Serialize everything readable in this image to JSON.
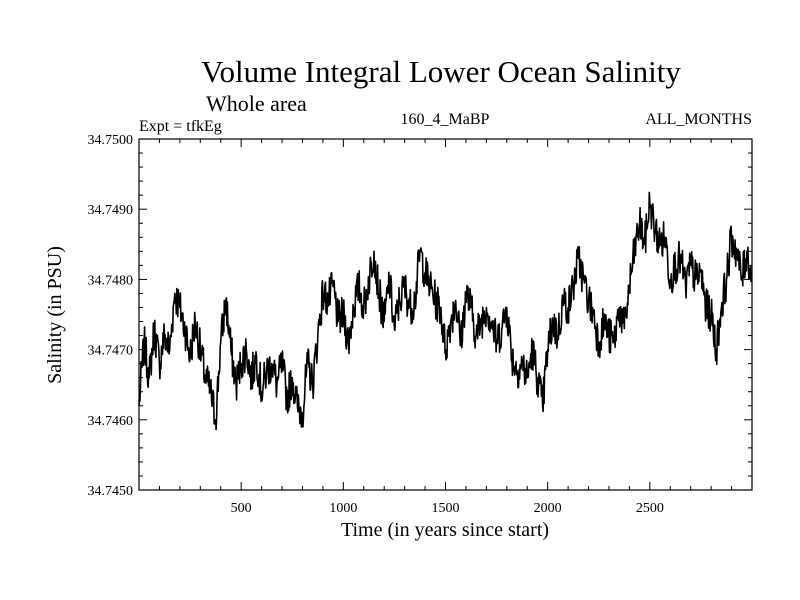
{
  "header": {
    "title": "Volume Integral Lower Ocean Salinity",
    "subtitle": "Whole area",
    "expt": "Expt = tfkEg",
    "run": "160_4_MaBP",
    "months": "ALL_MONTHS"
  },
  "chart_data": {
    "type": "line",
    "xlabel": "Time (in years since start)",
    "ylabel": "Salinity (in PSU)",
    "xlim": [
      0,
      3000
    ],
    "ylim": [
      34.745,
      34.75
    ],
    "x_ticks": [
      500,
      1000,
      1500,
      2000,
      2500
    ],
    "y_ticks": [
      "34.7450",
      "34.7460",
      "34.7470",
      "34.7480",
      "34.7490",
      "34.7500"
    ],
    "grid": false,
    "series": [
      {
        "color": "#000000",
        "x": [
          0,
          25,
          50,
          75,
          100,
          125,
          150,
          175,
          200,
          225,
          250,
          275,
          300,
          325,
          350,
          375,
          400,
          425,
          450,
          475,
          500,
          525,
          550,
          575,
          600,
          625,
          650,
          675,
          700,
          725,
          750,
          775,
          800,
          825,
          850,
          875,
          900,
          925,
          950,
          975,
          1000,
          1025,
          1050,
          1075,
          1100,
          1125,
          1150,
          1175,
          1200,
          1225,
          1250,
          1275,
          1300,
          1325,
          1350,
          1375,
          1400,
          1425,
          1450,
          1475,
          1500,
          1525,
          1550,
          1575,
          1600,
          1625,
          1650,
          1675,
          1700,
          1725,
          1750,
          1775,
          1800,
          1825,
          1850,
          1875,
          1900,
          1925,
          1950,
          1975,
          2000,
          2025,
          2050,
          2075,
          2100,
          2125,
          2150,
          2175,
          2200,
          2225,
          2250,
          2275,
          2300,
          2325,
          2350,
          2375,
          2400,
          2425,
          2450,
          2475,
          2500,
          2525,
          2550,
          2575,
          2600,
          2625,
          2650,
          2675,
          2700,
          2725,
          2750,
          2775,
          2800,
          2825,
          2850,
          2875,
          2900,
          2925,
          2950,
          2975,
          3000
        ],
        "y": [
          34.7462,
          34.7471,
          34.7466,
          34.7473,
          34.7468,
          34.7472,
          34.747,
          34.7478,
          34.7476,
          34.7473,
          34.7469,
          34.7474,
          34.747,
          34.7466,
          34.7464,
          34.746,
          34.7471,
          34.7477,
          34.747,
          34.7465,
          34.7468,
          34.747,
          34.7466,
          34.7469,
          34.7464,
          34.7467,
          34.7468,
          34.7465,
          34.7468,
          34.7463,
          34.7466,
          34.7462,
          34.7461,
          34.7468,
          34.7465,
          34.7472,
          34.7478,
          34.7477,
          34.7479,
          34.7474,
          34.7475,
          34.7471,
          34.7476,
          34.7479,
          34.7476,
          34.748,
          34.7484,
          34.7478,
          34.7474,
          34.748,
          34.7473,
          34.7477,
          34.7479,
          34.7476,
          34.7477,
          34.7484,
          34.7481,
          34.7479,
          34.7477,
          34.7476,
          34.747,
          34.7474,
          34.7477,
          34.7471,
          34.7478,
          34.7476,
          34.7472,
          34.7474,
          34.7476,
          34.7474,
          34.7471,
          34.7473,
          34.7476,
          34.7469,
          34.7467,
          34.7468,
          34.7466,
          34.747,
          34.7466,
          34.7462,
          34.747,
          34.7474,
          34.7472,
          34.7477,
          34.7476,
          34.7479,
          34.7483,
          34.748,
          34.7477,
          34.7475,
          34.7471,
          34.7474,
          34.7472,
          34.7471,
          34.7476,
          34.7473,
          34.7479,
          34.7484,
          34.7488,
          34.7485,
          34.7491,
          34.7487,
          34.7485,
          34.7486,
          34.748,
          34.7482,
          34.7483,
          34.7479,
          34.7482,
          34.748,
          34.7481,
          34.7476,
          34.7475,
          34.747,
          34.7476,
          34.748,
          34.7486,
          34.7484,
          34.748,
          34.7484,
          34.748
        ]
      }
    ]
  }
}
